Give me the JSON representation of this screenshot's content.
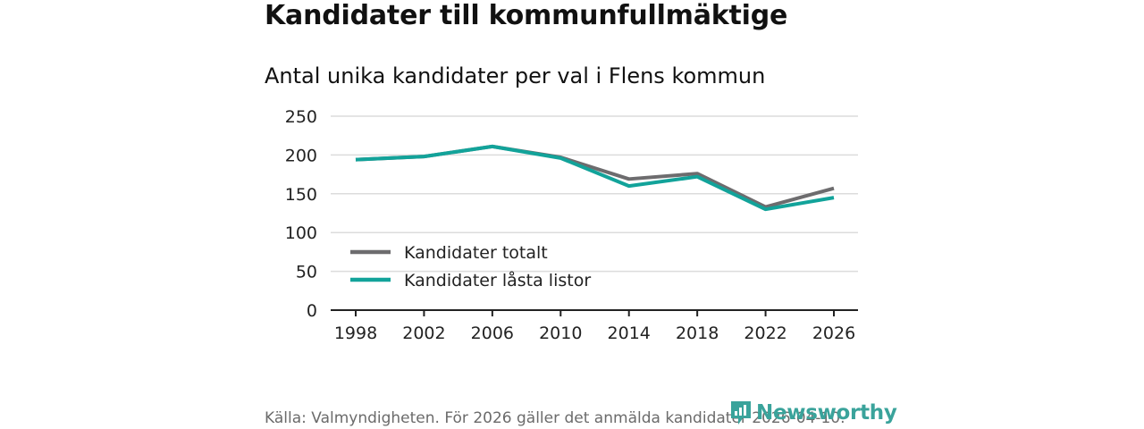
{
  "header": {
    "title": "Kandidater till kommunfullmäktige",
    "subtitle": "Antal unika kandidater per val i Flens kommun"
  },
  "footer": {
    "source": "Källa: Valmyndigheten. För 2026 gäller det anmälda kandidater 2026-04-10.",
    "logo_text": "Newsworthy",
    "logo_icon": "newsworthy-logo-icon"
  },
  "colors": {
    "total": "#6d6c6e",
    "locked": "#12a39a",
    "grid": "#dcdcdc",
    "axis": "#222222",
    "logo": "#3aa39b"
  },
  "chart_data": {
    "type": "line",
    "categories": [
      "1998",
      "2002",
      "2006",
      "2010",
      "2014",
      "2018",
      "2022",
      "2026"
    ],
    "series": [
      {
        "name": "Kandidater totalt",
        "values": [
          194,
          198,
          211,
          197,
          169,
          176,
          133,
          157
        ]
      },
      {
        "name": "Kandidater låsta listor",
        "values": [
          194,
          198,
          211,
          196,
          160,
          172,
          130,
          145
        ]
      }
    ],
    "yticks": [
      "0",
      "50",
      "100",
      "150",
      "200",
      "250"
    ],
    "ylim": [
      0,
      250
    ],
    "grid": true,
    "legend": "bottom-left"
  }
}
